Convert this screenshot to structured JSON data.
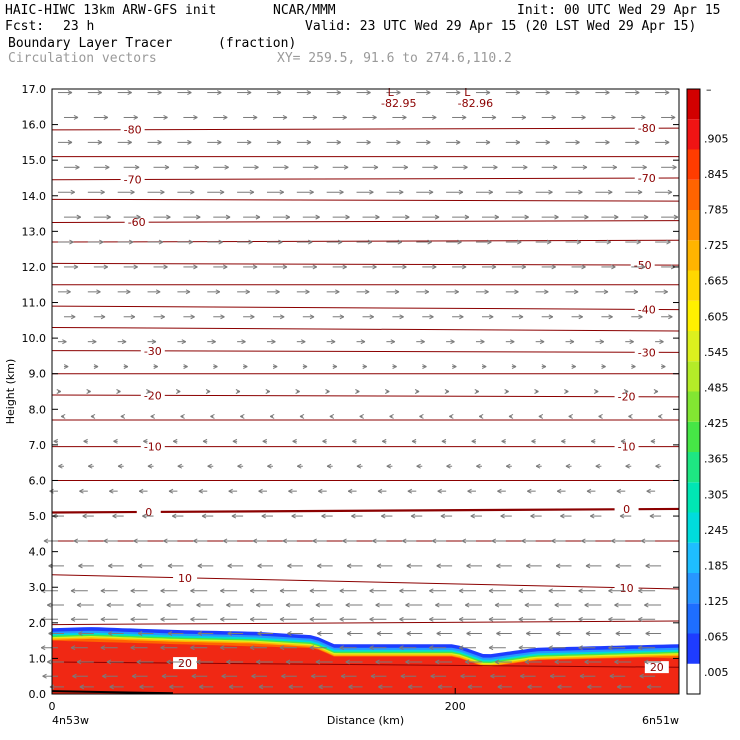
{
  "header": {
    "model": "HAIC-HIWC 13km ARW-GFS init",
    "org": "NCAR/MMM",
    "init": "Init: 00 UTC Wed 29 Apr 15",
    "fcst_label": "Fcst:",
    "fcst_value": "23 h",
    "valid": "Valid: 23 UTC Wed 29 Apr 15 (20 LST Wed 29 Apr 15)",
    "field": "Boundary Layer Tracer",
    "units": "(fraction)",
    "overlay": "Circulation vectors",
    "xy": "XY= 259.5, 91.6 to 274.6,110.2"
  },
  "chart_data": {
    "type": "heatmap",
    "xlabel": "Distance (km)",
    "ylabel": "Height (km)",
    "xlim": [
      0,
      311
    ],
    "ylim": [
      0,
      17
    ],
    "x_ticks": [
      0,
      200
    ],
    "y_ticks": [
      "0.0",
      "1.0",
      "2.0",
      "3.0",
      "4.0",
      "5.0",
      "6.0",
      "7.0",
      "8.0",
      "9.0",
      "10.0",
      "11.0",
      "12.0",
      "13.0",
      "14.0",
      "15.0",
      "16.0",
      "17.0"
    ],
    "x_endpoint_labels": [
      "4n53w",
      "6n51w"
    ],
    "colorbar": {
      "labels": [
        ".005",
        ".065",
        ".125",
        ".185",
        ".245",
        ".305",
        ".365",
        ".425",
        ".485",
        ".545",
        ".605",
        ".665",
        ".725",
        ".785",
        ".845",
        ".905"
      ],
      "top_label": "–",
      "colors": [
        "#ffffff",
        "#1e3cff",
        "#1e6eff",
        "#2896ff",
        "#1ebeff",
        "#00dcdc",
        "#00e6b4",
        "#1ee682",
        "#46e646",
        "#82e632",
        "#b4ec28",
        "#dcf01e",
        "#fff000",
        "#ffd700",
        "#ffb400",
        "#ff8c00",
        "#ff6400",
        "#ff3c00",
        "#f01414",
        "#d20000"
      ]
    },
    "tracer_layer": {
      "top_edge_km": [
        [
          0,
          1.85
        ],
        [
          20,
          1.88
        ],
        [
          60,
          1.8
        ],
        [
          100,
          1.75
        ],
        [
          130,
          1.65
        ],
        [
          140,
          1.4
        ],
        [
          170,
          1.4
        ],
        [
          200,
          1.4
        ],
        [
          215,
          1.1
        ],
        [
          240,
          1.3
        ],
        [
          311,
          1.4
        ]
      ],
      "red_top_km": [
        [
          0,
          1.5
        ],
        [
          311,
          1.0
        ]
      ]
    },
    "temperature_contours": [
      {
        "label": "-80",
        "y_left_km": 15.85,
        "y_right_km": 15.9,
        "label_x_km": [
          40,
          295
        ]
      },
      {
        "label": "",
        "y_left_km": 15.1,
        "y_right_km": 15.1
      },
      {
        "label": "-70",
        "y_left_km": 14.45,
        "y_right_km": 14.5,
        "label_x_km": [
          40,
          295
        ]
      },
      {
        "label": "",
        "y_left_km": 13.9,
        "y_right_km": 13.85
      },
      {
        "label": "-60",
        "y_left_km": 13.25,
        "y_right_km": 13.3,
        "label_x_km": [
          42
        ]
      },
      {
        "label": "",
        "y_left_km": 12.7,
        "y_right_km": 12.75
      },
      {
        "label": "-50",
        "y_left_km": 12.1,
        "y_right_km": 12.05,
        "label_x_km": [
          293
        ]
      },
      {
        "label": "",
        "y_left_km": 11.5,
        "y_right_km": 11.5
      },
      {
        "label": "-40",
        "y_left_km": 10.9,
        "y_right_km": 10.8,
        "label_x_km": [
          295
        ]
      },
      {
        "label": "",
        "y_left_km": 10.3,
        "y_right_km": 10.2
      },
      {
        "label": "-30",
        "y_left_km": 9.65,
        "y_right_km": 9.6,
        "label_x_km": [
          50,
          295
        ]
      },
      {
        "label": "",
        "y_left_km": 9.0,
        "y_right_km": 9.0
      },
      {
        "label": "-20",
        "y_left_km": 8.4,
        "y_right_km": 8.35,
        "label_x_km": [
          50,
          285
        ]
      },
      {
        "label": "",
        "y_left_km": 7.7,
        "y_right_km": 7.7
      },
      {
        "label": "-10",
        "y_left_km": 6.95,
        "y_right_km": 6.95,
        "label_x_km": [
          50,
          285
        ]
      },
      {
        "label": "",
        "y_left_km": 6.0,
        "y_right_km": 6.0
      },
      {
        "label": "0",
        "y_left_km": 5.1,
        "y_right_km": 5.2,
        "label_x_km": [
          48,
          285
        ],
        "thick": true
      },
      {
        "label": "",
        "y_left_km": 4.3,
        "y_right_km": 4.3
      },
      {
        "label": "10",
        "y_left_km": 3.35,
        "y_right_km": 2.95,
        "label_x_km": [
          66,
          285
        ]
      },
      {
        "label": "",
        "y_left_km": 1.95,
        "y_right_km": 2.05
      },
      {
        "label": "20",
        "y_left_km": 0.9,
        "y_right_km": 0.75,
        "label_x_km": [
          66,
          300
        ]
      }
    ],
    "annotations": [
      {
        "text": "L",
        "x_km": 168,
        "y_km": 16.8
      },
      {
        "text": "-82.95",
        "x_km": 172,
        "y_km": 16.5
      },
      {
        "text": "L",
        "x_km": 206,
        "y_km": 16.8
      },
      {
        "text": "-82.96",
        "x_km": 210,
        "y_km": 16.5
      }
    ],
    "vectors": {
      "note": "circulation vectors: eastward aloft, westward below 5 km",
      "levels_km": [
        16.9,
        16.2,
        15.5,
        14.8,
        14.1,
        13.4,
        12.7,
        12.0,
        11.3,
        10.6,
        9.9,
        9.2,
        8.5,
        7.8,
        7.1,
        6.4,
        5.7,
        5.0,
        4.3,
        3.6,
        2.9,
        2.5,
        2.1,
        1.7,
        1.3,
        0.9,
        0.5,
        0.2
      ],
      "u_by_level": [
        1.0,
        1.0,
        1.0,
        1.1,
        1.2,
        1.2,
        1.1,
        1.0,
        0.9,
        0.8,
        0.6,
        0.3,
        0.2,
        -0.2,
        -0.3,
        -0.4,
        -0.6,
        -0.8,
        -1.0,
        -1.1,
        -1.2,
        -1.2,
        -1.2,
        -1.1,
        -1.2,
        -1.2,
        -1.1,
        -1.0
      ]
    }
  }
}
